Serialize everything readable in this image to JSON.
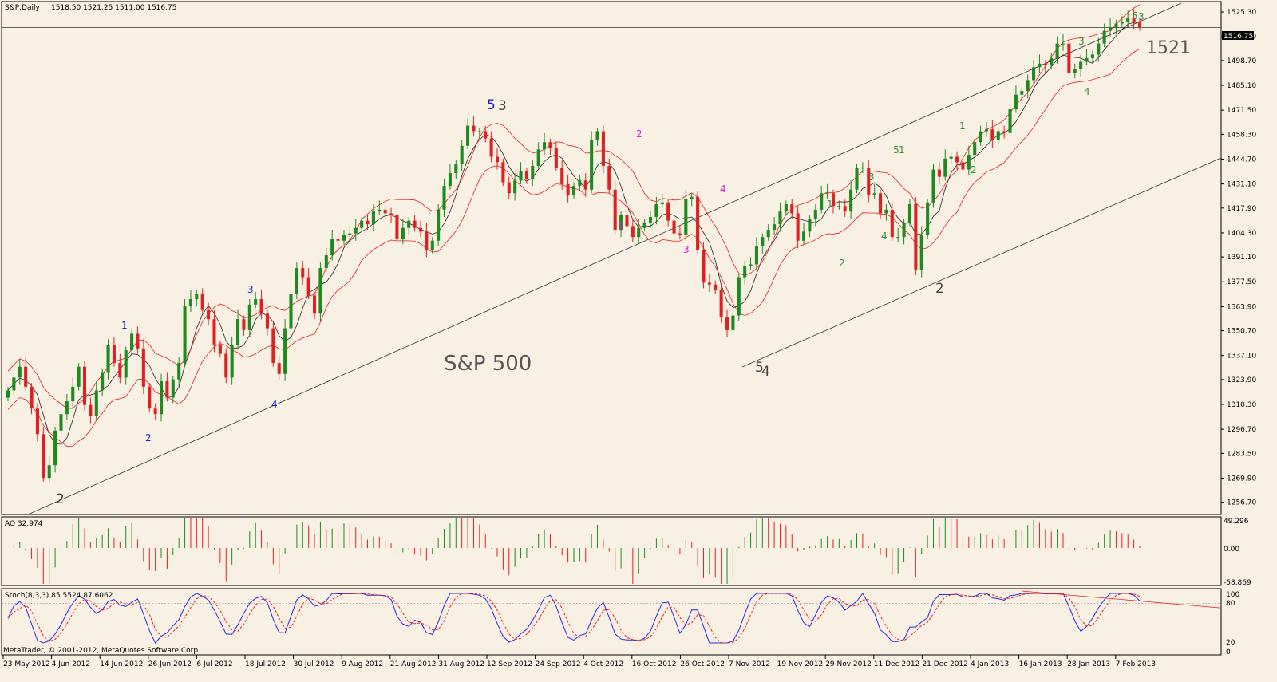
{
  "window": {
    "symbol_header": "S&P,Daily",
    "ohlc_header": "1518.50 1521.25 1511.00 1516.75",
    "copyright": "MetaTrader, © 2001-2012, MetaQuotes Software Corp.",
    "current_price_tag": "1516.75"
  },
  "colors": {
    "background": "#f8f0e3",
    "bull": "#1d8a1d",
    "bear": "#e02020",
    "envelope": "#e02020",
    "ma": "#222222",
    "stoch_main": "#2828e0",
    "stoch_signal": "#e02020",
    "wave_blue": "#1d1ddc",
    "wave_magenta": "#d81ed8",
    "wave_green": "#3a8a3a",
    "wave_gray": "#444444"
  },
  "chart_data": [
    {
      "type": "candlestick",
      "title": "S&P 500",
      "annotation_price": "1521",
      "ylim": [
        1250,
        1531
      ],
      "y_ticks": [
        "1525.30",
        "1511.90",
        "1498.70",
        "1485.10",
        "1471.50",
        "1458.30",
        "1444.70",
        "1431.10",
        "1417.90",
        "1404.30",
        "1391.10",
        "1377.50",
        "1363.90",
        "1350.70",
        "1337.10",
        "1323.90",
        "1310.30",
        "1296.70",
        "1283.50",
        "1269.90",
        "1256.70"
      ],
      "x_ticks": [
        "23 May 2012",
        "4 Jun 2012",
        "14 Jun 2012",
        "26 Jun 2012",
        "6 Jul 2012",
        "18 Jul 2012",
        "30 Jul 2012",
        "9 Aug 2012",
        "21 Aug 2012",
        "31 Aug 2012",
        "12 Sep 2012",
        "24 Sep 2012",
        "4 Oct 2012",
        "16 Oct 2012",
        "26 Oct 2012",
        "7 Nov 2012",
        "19 Nov 2012",
        "29 Nov 2012",
        "11 Dec 2012",
        "21 Dec 2012",
        "4 Jan 2013",
        "16 Jan 2013",
        "28 Jan 2013",
        "7 Feb 2013"
      ],
      "closes": [
        1318,
        1325,
        1331,
        1320,
        1308,
        1294,
        1270,
        1277,
        1296,
        1305,
        1312,
        1320,
        1331,
        1310,
        1304,
        1318,
        1328,
        1343,
        1333,
        1325,
        1340,
        1349,
        1341,
        1320,
        1308,
        1305,
        1323,
        1314,
        1324,
        1333,
        1364,
        1368,
        1371,
        1362,
        1357,
        1343,
        1338,
        1325,
        1343,
        1357,
        1351,
        1365,
        1368,
        1360,
        1352,
        1333,
        1327,
        1352,
        1371,
        1385,
        1380,
        1370,
        1360,
        1385,
        1392,
        1401,
        1400,
        1403,
        1404,
        1407,
        1411,
        1409,
        1416,
        1417,
        1415,
        1414,
        1401,
        1407,
        1411,
        1407,
        1405,
        1395,
        1400,
        1417,
        1430,
        1437,
        1442,
        1452,
        1463,
        1460,
        1460,
        1456,
        1446,
        1443,
        1432,
        1426,
        1433,
        1438,
        1434,
        1441,
        1450,
        1454,
        1451,
        1440,
        1431,
        1425,
        1430,
        1433,
        1428,
        1455,
        1460,
        1441,
        1428,
        1406,
        1414,
        1408,
        1402,
        1407,
        1410,
        1413,
        1420,
        1421,
        1411,
        1404,
        1403,
        1423,
        1424,
        1395,
        1377,
        1376,
        1373,
        1358,
        1351,
        1359,
        1380,
        1386,
        1387,
        1397,
        1402,
        1406,
        1409,
        1416,
        1420,
        1415,
        1400,
        1405,
        1412,
        1417,
        1426,
        1426,
        1419,
        1419,
        1416,
        1428,
        1440,
        1440,
        1425,
        1426,
        1415,
        1417,
        1402,
        1402,
        1410,
        1420,
        1384,
        1403,
        1421,
        1439,
        1435,
        1445,
        1446,
        1443,
        1439,
        1447,
        1454,
        1460,
        1461,
        1455,
        1460,
        1459,
        1472,
        1480,
        1482,
        1488,
        1495,
        1497,
        1496,
        1500,
        1508,
        1508,
        1492,
        1494,
        1498,
        1500,
        1502,
        1508,
        1515,
        1517,
        1519,
        1520,
        1522,
        1520,
        1517
      ],
      "wave_labels": [
        "2",
        "1",
        "2",
        "3",
        "4",
        "5",
        "3",
        "1",
        "2",
        "3",
        "4",
        "5",
        "4",
        "1",
        "2",
        "3",
        "5",
        "1",
        "4",
        "2",
        "1",
        "2",
        "3",
        "4",
        "5",
        "3"
      ],
      "series_names": []
    },
    {
      "type": "bar",
      "title": "AO 32.974",
      "y_ticks": [
        "49.296",
        "0.00",
        "-58.869"
      ],
      "ylim": [
        -58.869,
        49.296
      ]
    },
    {
      "type": "line",
      "title": "Stoch(8,3,3) 85.5524 87.6062",
      "y_ticks": [
        "100",
        "80",
        "20",
        "0"
      ],
      "ylim": [
        0,
        100
      ]
    }
  ]
}
